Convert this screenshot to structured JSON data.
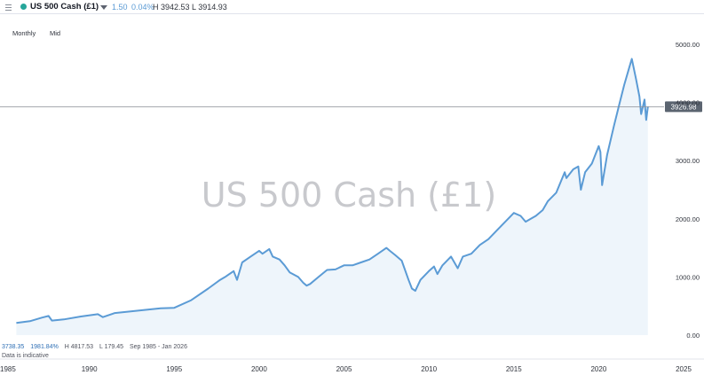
{
  "header": {
    "instrument": "US 500 Cash (£1)",
    "change": "1.50",
    "change_pct": "0.04%",
    "high_low": "H 3942.53  L 3914.93",
    "status_color": "#26a69a",
    "menu_icon": "hamburger-icon",
    "dropdown_icon": "caret-down-icon"
  },
  "settings": {
    "period": "Monthly",
    "price_type": "Mid"
  },
  "watermark": "US 500 Cash (£1)",
  "current_price_label": "3926.98",
  "footer": {
    "last": "3738.35",
    "change_pct": "1981.84%",
    "high": "H 4817.53",
    "low": "L 179.45",
    "range": "Sep 1985 - Jan 2026",
    "note": "Data is indicative"
  },
  "colors": {
    "line": "#5b9bd5",
    "area": "#eef5fb",
    "price_label_bg": "#5b6470"
  },
  "chart_data": {
    "type": "area",
    "x": [
      1985.7,
      1986.5,
      1987.2,
      1987.6,
      1987.8,
      1988.5,
      1989.5,
      1990.5,
      1990.8,
      1991.5,
      1992.5,
      1993.5,
      1994.2,
      1995.0,
      1996.0,
      1997.0,
      1997.7,
      1998.0,
      1998.5,
      1998.7,
      1999.0,
      1999.5,
      2000.0,
      2000.2,
      2000.6,
      2000.8,
      2001.2,
      2001.5,
      2001.8,
      2002.3,
      2002.6,
      2002.8,
      2003.0,
      2003.5,
      2004.0,
      2004.5,
      2005.0,
      2005.5,
      2006.0,
      2006.5,
      2007.0,
      2007.5,
      2007.7,
      2008.0,
      2008.4,
      2008.8,
      2009.0,
      2009.2,
      2009.5,
      2010.0,
      2010.3,
      2010.5,
      2010.8,
      2011.3,
      2011.7,
      2012.0,
      2012.5,
      2013.0,
      2013.5,
      2014.0,
      2014.5,
      2015.0,
      2015.4,
      2015.7,
      2016.0,
      2016.3,
      2016.7,
      2017.0,
      2017.5,
      2018.0,
      2018.1,
      2018.5,
      2018.8,
      2018.95,
      2019.2,
      2019.6,
      2020.0,
      2020.1,
      2020.2,
      2020.5,
      2020.9,
      2021.2,
      2021.5,
      2021.8,
      2021.95,
      2022.2,
      2022.4,
      2022.5,
      2022.7,
      2022.8,
      2022.9
    ],
    "y": [
      210,
      240,
      300,
      330,
      250,
      270,
      320,
      360,
      310,
      380,
      410,
      440,
      460,
      470,
      600,
      800,
      950,
      1000,
      1100,
      950,
      1250,
      1350,
      1450,
      1400,
      1480,
      1350,
      1300,
      1200,
      1080,
      1000,
      900,
      850,
      880,
      1000,
      1120,
      1130,
      1200,
      1200,
      1250,
      1300,
      1400,
      1500,
      1450,
      1380,
      1280,
      950,
      800,
      760,
      950,
      1100,
      1180,
      1050,
      1200,
      1350,
      1150,
      1350,
      1400,
      1550,
      1650,
      1800,
      1950,
      2100,
      2050,
      1950,
      2000,
      2050,
      2150,
      2300,
      2450,
      2800,
      2700,
      2850,
      2900,
      2500,
      2800,
      2950,
      3250,
      3150,
      2580,
      3100,
      3600,
      3950,
      4300,
      4600,
      4750,
      4400,
      4100,
      3800,
      4050,
      3700,
      3927
    ],
    "xlim": [
      1985,
      2025
    ],
    "ylim": [
      0,
      5000
    ],
    "yticks": [
      "0.00",
      "1000.00",
      "2000.00",
      "3000.00",
      "4000.00",
      "5000.00"
    ],
    "ytick_values": [
      0,
      1000,
      2000,
      3000,
      4000,
      5000
    ],
    "xticks": [
      "1985",
      "1990",
      "1995",
      "2000",
      "2005",
      "2010",
      "2015",
      "2020",
      "2025"
    ],
    "xtick_values": [
      1985,
      1990,
      1995,
      2000,
      2005,
      2010,
      2015,
      2020,
      2025
    ],
    "current_value": 3926.98
  }
}
